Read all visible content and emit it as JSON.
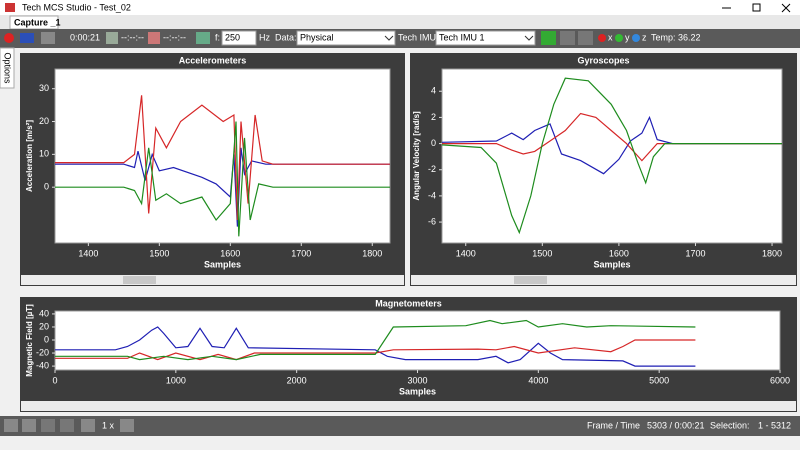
{
  "window": {
    "title": "Tech MCS Studio - Test_02",
    "tab": "Capture _1",
    "side_tab": "Options"
  },
  "toolbar": {
    "elapsed": "0:00:21",
    "start_time": "--:--:--",
    "end_time": "--:--:--",
    "freq_label": "f:",
    "freq": "250",
    "freq_unit": "Hz",
    "data_label": "Data:",
    "data_value": "Physical",
    "imu_label": "Tech IMU:",
    "imu_value": "Tech IMU 1",
    "axis_x": "x",
    "axis_y": "y",
    "axis_z": "z",
    "temp": "Temp: 36.22"
  },
  "chart_data": [
    {
      "type": "line",
      "title": "Accelerometers",
      "x_label": "Samples",
      "y_label": "Acceleration [m/s²]",
      "xlim": [
        1353,
        1825
      ],
      "xticks": [
        1400,
        1500,
        1600,
        1700,
        1800
      ],
      "ylim": [
        -17,
        36
      ],
      "yticks": [
        0,
        10,
        20,
        30
      ],
      "series": [
        {
          "color": "#1f1fb4",
          "x": [
            1353,
            1450,
            1465,
            1470,
            1480,
            1490,
            1500,
            1520,
            1560,
            1580,
            1600,
            1605,
            1610,
            1615,
            1620,
            1630,
            1650,
            1700,
            1825
          ],
          "values": [
            7,
            7,
            6,
            11,
            2,
            10,
            5,
            6,
            3,
            1,
            -3,
            10,
            -12,
            12,
            4,
            8,
            7,
            7,
            7
          ]
        },
        {
          "color": "#d62728",
          "x": [
            1353,
            1450,
            1465,
            1475,
            1485,
            1495,
            1510,
            1530,
            1560,
            1590,
            1605,
            1610,
            1615,
            1625,
            1635,
            1645,
            1660,
            1825
          ],
          "values": [
            7.5,
            7.5,
            10,
            28,
            -8,
            18,
            12,
            20,
            25,
            20,
            22,
            -10,
            20,
            -5,
            22,
            8,
            7,
            7
          ]
        },
        {
          "color": "#1e8c1e",
          "x": [
            1353,
            1450,
            1465,
            1475,
            1485,
            1495,
            1510,
            1530,
            1560,
            1580,
            1600,
            1608,
            1612,
            1620,
            1628,
            1640,
            1660,
            1825
          ],
          "values": [
            0,
            0,
            -1,
            -5,
            12,
            -4,
            -2,
            -5,
            -3,
            -10,
            -5,
            20,
            -15,
            15,
            -10,
            1,
            0,
            0
          ]
        }
      ]
    },
    {
      "type": "line",
      "title": "Gyroscopes",
      "x_label": "Samples",
      "y_label": "Angular Velocity [rad/s]",
      "xlim": [
        1369,
        1813
      ],
      "xticks": [
        1400,
        1500,
        1600,
        1700,
        1800
      ],
      "ylim": [
        -7.6,
        5.7
      ],
      "yticks": [
        -6,
        -4,
        -2,
        0,
        2,
        4
      ],
      "series": [
        {
          "color": "#1f1fb4",
          "x": [
            1369,
            1440,
            1460,
            1475,
            1490,
            1510,
            1525,
            1550,
            1580,
            1600,
            1615,
            1630,
            1640,
            1650,
            1670,
            1813
          ],
          "values": [
            0.1,
            0.2,
            0.8,
            0.3,
            1.0,
            1.5,
            -0.8,
            -1.3,
            -2.3,
            -1.2,
            0.2,
            0.8,
            2.0,
            0.3,
            0,
            0
          ]
        },
        {
          "color": "#d62728",
          "x": [
            1369,
            1440,
            1460,
            1475,
            1490,
            1510,
            1530,
            1550,
            1570,
            1590,
            1610,
            1630,
            1650,
            1670,
            1813
          ],
          "values": [
            0,
            0,
            -0.5,
            -0.8,
            -0.6,
            0.2,
            1.0,
            2.3,
            2.0,
            1.0,
            0,
            -1.3,
            0,
            0,
            0
          ]
        },
        {
          "color": "#1e8c1e",
          "x": [
            1369,
            1420,
            1440,
            1460,
            1470,
            1485,
            1500,
            1515,
            1530,
            1560,
            1590,
            1610,
            1625,
            1635,
            1645,
            1660,
            1813
          ],
          "values": [
            -0.1,
            -0.3,
            -1.5,
            -5.5,
            -6.8,
            -4,
            0,
            3,
            5,
            4.8,
            3,
            1,
            -1.5,
            -3,
            -1,
            0,
            0
          ]
        }
      ]
    },
    {
      "type": "line",
      "title": "Magnetometers",
      "x_label": "Samples",
      "y_label": "Magnetic Field [µT]",
      "xlim": [
        0,
        6000
      ],
      "xticks": [
        0,
        1000,
        2000,
        3000,
        4000,
        5000,
        6000
      ],
      "ylim": [
        -46,
        44.5
      ],
      "yticks": [
        -40,
        -20,
        0,
        20,
        40
      ],
      "series": [
        {
          "color": "#1f1fb4",
          "x": [
            0,
            500,
            600,
            700,
            800,
            850,
            900,
            1000,
            1100,
            1200,
            1300,
            1400,
            1500,
            1600,
            2650,
            2750,
            2900,
            3500,
            3650,
            3750,
            3850,
            4000,
            4100,
            4200,
            4700,
            4800,
            5300
          ],
          "values": [
            -15,
            -15,
            -10,
            0,
            15,
            20,
            10,
            -12,
            -10,
            18,
            -10,
            -12,
            18,
            -12,
            -15,
            -25,
            -30,
            -30,
            -25,
            -35,
            -30,
            -5,
            -20,
            -30,
            -32,
            -40,
            -40
          ]
        },
        {
          "color": "#d62728",
          "x": [
            0,
            600,
            700,
            850,
            1000,
            1200,
            1350,
            1500,
            1650,
            2650,
            2800,
            3500,
            3650,
            3800,
            4000,
            4300,
            4600,
            4700,
            4800,
            5300
          ],
          "values": [
            -28,
            -28,
            -20,
            -30,
            -20,
            -30,
            -22,
            -30,
            -20,
            -20,
            -15,
            -14,
            -15,
            -10,
            -20,
            -12,
            -18,
            -10,
            0,
            0
          ]
        },
        {
          "color": "#1e8c1e",
          "x": [
            0,
            600,
            700,
            900,
            1100,
            1300,
            1500,
            1700,
            2650,
            2800,
            3400,
            3600,
            3700,
            3900,
            4000,
            4200,
            4400,
            4600,
            5300
          ],
          "values": [
            -25,
            -25,
            -30,
            -25,
            -30,
            -25,
            -30,
            -22,
            -22,
            20,
            22,
            30,
            25,
            30,
            20,
            25,
            20,
            22,
            20
          ]
        }
      ]
    }
  ],
  "statusbar": {
    "zoom": "1 x",
    "frame_label": "Frame / Time",
    "frame_value": "5303 / 0:00:21",
    "selection_label": "Selection:",
    "selection_value": "1 - 5312"
  }
}
